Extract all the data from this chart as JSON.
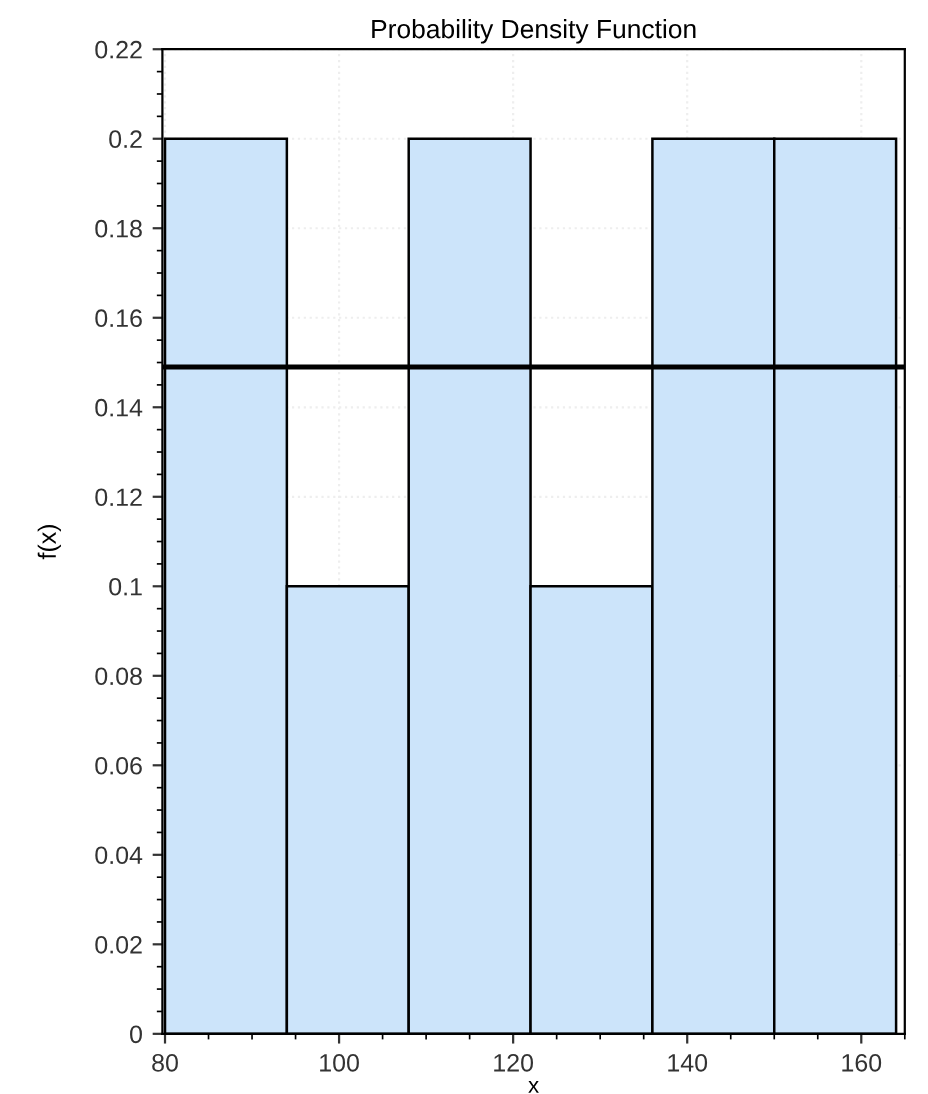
{
  "chart_data": {
    "type": "histogram",
    "title": "Probability Density Function",
    "xlabel": "x",
    "ylabel": "f(x)",
    "bins": [
      80,
      94,
      108,
      122,
      136,
      150,
      164
    ],
    "values": [
      0.2,
      0.1,
      0.2,
      0.1,
      0.2,
      0.2
    ],
    "color": "#cce4fa",
    "xlim": [
      79.7,
      165
    ],
    "xticks": [
      80,
      100,
      120,
      140,
      160
    ],
    "ylim": [
      0,
      0.22
    ],
    "yticks": [
      0,
      0.02,
      0.04,
      0.06,
      0.08,
      0.1,
      0.12,
      0.14,
      0.16,
      0.18,
      0.2,
      0.22
    ],
    "ref_lines": [
      {
        "axis": "y",
        "value": 0.149,
        "color": "#000000"
      }
    ],
    "grid": true
  }
}
